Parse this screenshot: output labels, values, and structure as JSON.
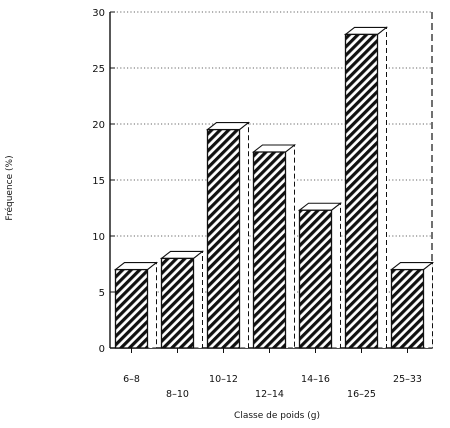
{
  "chart_data": {
    "type": "bar",
    "style": "3d-hatched",
    "categories": [
      "6–8",
      "8–10",
      "10–12",
      "12–14",
      "14–16",
      "16–25",
      "25–33"
    ],
    "values": [
      7,
      8,
      19.5,
      17.5,
      12.3,
      28,
      7
    ],
    "ylabel": "Fréquence (%)",
    "xlabel": "Classe de poids (g)",
    "ylim": [
      0,
      30
    ],
    "yticks": [
      0,
      5,
      10,
      15,
      20,
      25,
      30
    ],
    "grid": "horizontal dotted",
    "legend": "none",
    "colors": {
      "bar_front": "#ffffff",
      "hatch": "#111111",
      "outline": "#111111"
    }
  }
}
